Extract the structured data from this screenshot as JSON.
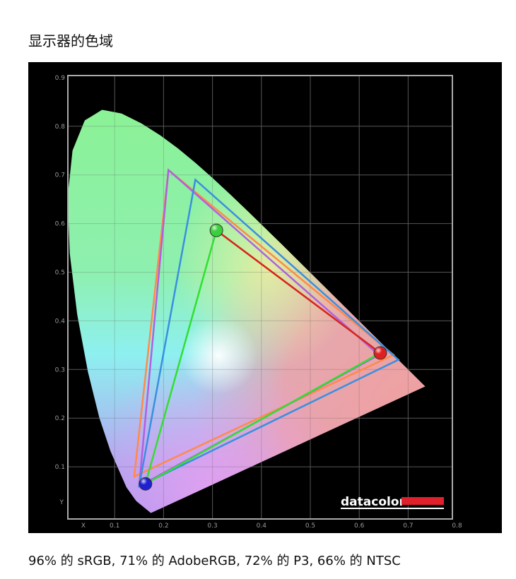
{
  "page": {
    "title": "显示器的色域",
    "caption": "96% 的 sRGB, 71% 的 AdobeRGB, 72% 的 P3, 66% 的 NTSC"
  },
  "chart_data": {
    "type": "chromaticity-diagram",
    "xlabel": "X",
    "ylabel": "Y",
    "xlim": [
      0,
      0.8
    ],
    "ylim": [
      0,
      0.9
    ],
    "x_ticks": [
      "0.1",
      "0.2",
      "0.3",
      "0.4",
      "0.5",
      "0.6",
      "0.7",
      "0.8"
    ],
    "y_ticks": [
      "0.1",
      "0.2",
      "0.3",
      "0.4",
      "0.5",
      "0.6",
      "0.7",
      "0.8",
      "0.9"
    ],
    "grid": true,
    "logo": "datacolor",
    "spectral_locus": [
      [
        0.1741,
        0.005
      ],
      [
        0.144,
        0.0297
      ],
      [
        0.1241,
        0.0578
      ],
      [
        0.0913,
        0.1327
      ],
      [
        0.0687,
        0.2007
      ],
      [
        0.0454,
        0.295
      ],
      [
        0.0235,
        0.4127
      ],
      [
        0.0082,
        0.5384
      ],
      [
        0.0039,
        0.6548
      ],
      [
        0.0139,
        0.7502
      ],
      [
        0.0389,
        0.812
      ],
      [
        0.0743,
        0.8338
      ],
      [
        0.1142,
        0.8262
      ],
      [
        0.1547,
        0.8059
      ],
      [
        0.1929,
        0.7816
      ],
      [
        0.2296,
        0.7543
      ],
      [
        0.2658,
        0.7243
      ],
      [
        0.3016,
        0.6923
      ],
      [
        0.3373,
        0.6589
      ],
      [
        0.3731,
        0.6245
      ],
      [
        0.4087,
        0.5896
      ],
      [
        0.4441,
        0.5547
      ],
      [
        0.4788,
        0.5202
      ],
      [
        0.5125,
        0.4866
      ],
      [
        0.5448,
        0.4544
      ],
      [
        0.5752,
        0.4242
      ],
      [
        0.6029,
        0.3965
      ],
      [
        0.627,
        0.3725
      ],
      [
        0.6482,
        0.3514
      ],
      [
        0.6658,
        0.334
      ],
      [
        0.6801,
        0.3197
      ],
      [
        0.7347,
        0.2653
      ]
    ],
    "series": [
      {
        "color": "#ff8a4a",
        "points": [
          [
            0.67,
            0.33
          ],
          [
            0.21,
            0.71
          ],
          [
            0.14,
            0.08
          ]
        ]
      },
      {
        "color": "#b060e0",
        "points": [
          [
            0.64,
            0.33
          ],
          [
            0.21,
            0.71
          ],
          [
            0.15,
            0.06
          ]
        ]
      },
      {
        "color": "#3a8fe0",
        "points": [
          [
            0.68,
            0.32
          ],
          [
            0.265,
            0.69
          ],
          [
            0.15,
            0.06
          ]
        ]
      },
      {
        "color": "#30e030",
        "points": [
          [
            0.643,
            0.334
          ],
          [
            0.308,
            0.586
          ],
          [
            0.163,
            0.065
          ]
        ]
      },
      {
        "color": "#e02020",
        "points": [
          [
            0.643,
            0.334
          ],
          [
            0.308,
            0.586
          ]
        ]
      }
    ],
    "primaries": [
      {
        "name": "red",
        "color": "#e02020",
        "point": [
          0.643,
          0.334
        ]
      },
      {
        "name": "green",
        "color": "#3ad03a",
        "point": [
          0.308,
          0.586
        ]
      },
      {
        "name": "blue",
        "color": "#2020d0",
        "point": [
          0.163,
          0.065
        ]
      }
    ]
  }
}
